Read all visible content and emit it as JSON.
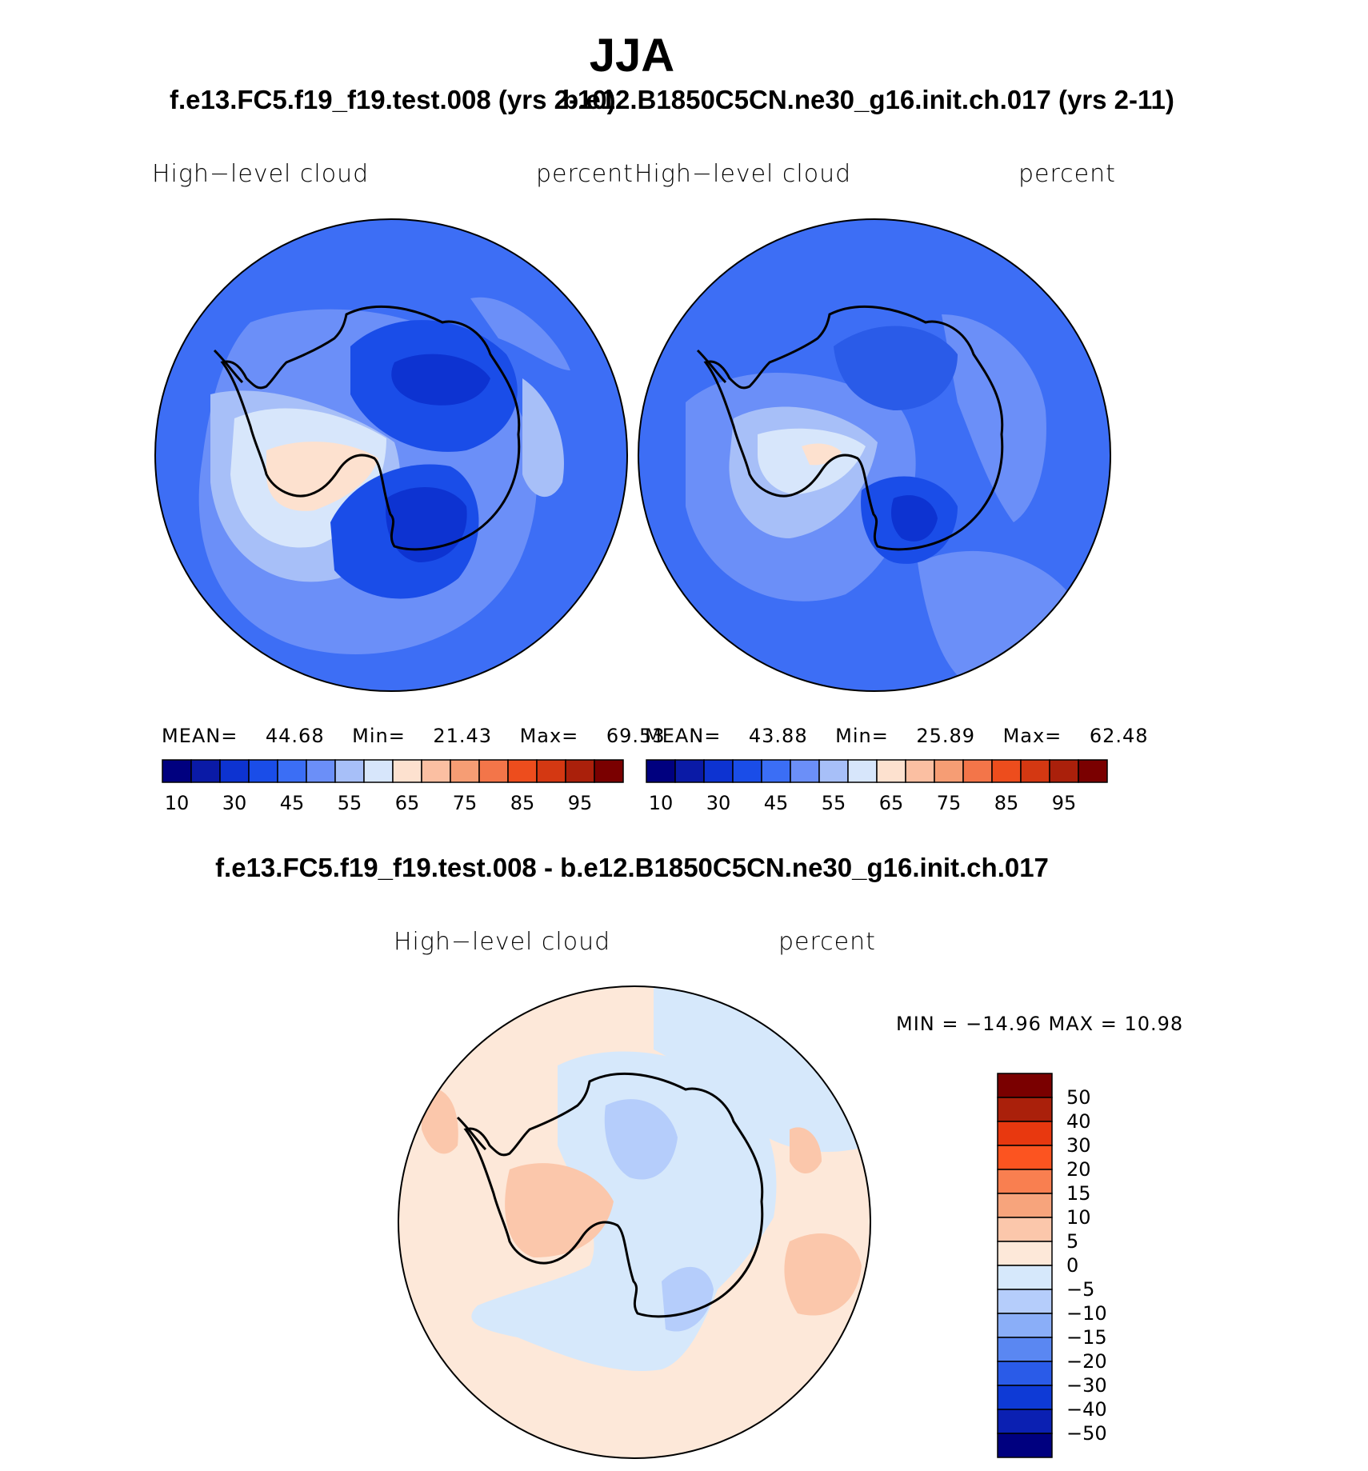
{
  "season": "JJA",
  "panels": {
    "left": {
      "case_title": "f.e13.FC5.f19_f19.test.008 (yrs 2-10)",
      "variable": "High−level  cloud",
      "units": "percent",
      "stats": {
        "mean_label": "MEAN=",
        "mean": "44.68",
        "min_label": "Min=",
        "min": "21.43",
        "max_label": "Max=",
        "max": "69.53"
      }
    },
    "right": {
      "case_title": "b.e12.B1850C5CN.ne30_g16.init.ch.017 (yrs 2-11)",
      "variable": "High−level  cloud",
      "units": "percent",
      "stats": {
        "mean_label": "MEAN=",
        "mean": "43.88",
        "min_label": "Min=",
        "min": "25.89",
        "max_label": "Max=",
        "max": "62.48"
      }
    },
    "difference": {
      "title": "f.e13.FC5.f19_f19.test.008 - b.e12.B1850C5CN.ne30_g16.init.ch.017",
      "variable": "High−level  cloud",
      "units": "percent",
      "minmax": "MIN = −14.96  MAX =   10.98"
    }
  },
  "colorbar_abs": {
    "colors": [
      "#00007f",
      "#0a1aa6",
      "#0d33d1",
      "#1a4de8",
      "#3b6ef5",
      "#6b8ff8",
      "#a7bff8",
      "#d7e6fb",
      "#fde1cf",
      "#fbbfa2",
      "#f69d74",
      "#f37549",
      "#ed4d1d",
      "#d43812",
      "#aa200b",
      "#7a0000"
    ],
    "tick_labels": [
      "10",
      "30",
      "45",
      "55",
      "65",
      "75",
      "85",
      "95"
    ]
  },
  "colorbar_diff": {
    "colors": [
      "#7a0000",
      "#aa200b",
      "#e8380f",
      "#fc5420",
      "#f97f50",
      "#f7a47c",
      "#fbc7ab",
      "#fde8d9",
      "#d6e8fb",
      "#b5cdfb",
      "#8aaef8",
      "#5a87f2",
      "#2a5be8",
      "#0e3ad6",
      "#0b20b2",
      "#00007f"
    ],
    "tick_labels": [
      "50",
      "40",
      "30",
      "20",
      "15",
      "10",
      "5",
      "0",
      "−5",
      "−10",
      "−15",
      "−20",
      "−30",
      "−40",
      "−50"
    ]
  },
  "map_colors": {
    "coast": "#000000",
    "left_bg": "#3d6ef5",
    "right_bg": "#3d6ef5",
    "diff_bg": "#fde8d9"
  }
}
